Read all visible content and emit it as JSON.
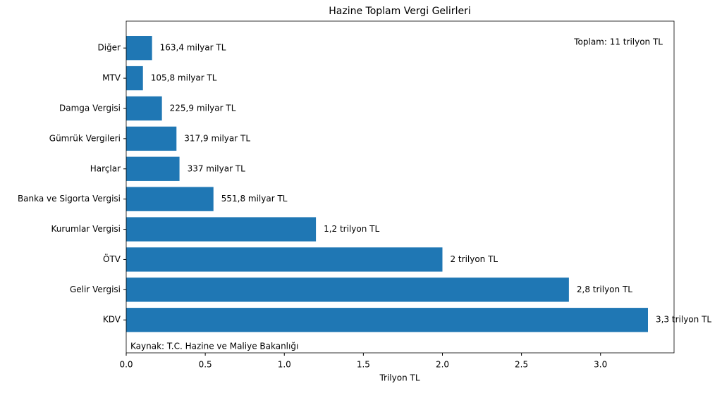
{
  "chart_data": {
    "type": "barh",
    "title": "Hazine Toplam Vergi Gelirleri",
    "xlabel": "Trilyon TL",
    "categories": [
      "Diğer",
      "MTV",
      "Damga Vergisi",
      "Gümrük Vergileri",
      "Harçlar",
      "Banka ve Sigorta Vergisi",
      "Kurumlar Vergisi",
      "ÖTV",
      "Gelir Vergisi",
      "KDV"
    ],
    "values": [
      0.1634,
      0.1058,
      0.2259,
      0.3179,
      0.337,
      0.5518,
      1.2,
      2.0,
      2.8,
      3.3
    ],
    "value_labels": [
      "163,4 milyar TL",
      "105,8 milyar TL",
      "225,9 milyar TL",
      "317,9 milyar TL",
      "337 milyar TL",
      "551,8 milyar TL",
      "1,2 trilyon TL",
      "2 trilyon TL",
      "2,8 trilyon TL",
      "3,3 trilyon TL"
    ],
    "color": "#1f77b4",
    "xlim": [
      0,
      3.465
    ],
    "xticks": [
      {
        "value": 0,
        "label": "0.0"
      },
      0.5,
      {
        "value": 1,
        "label": "1.0"
      },
      1.5,
      {
        "value": 2,
        "label": "2.0"
      },
      2.5,
      {
        "value": 3,
        "label": "3.0"
      }
    ],
    "annotations": [
      "Toplam: 11 trilyon TL",
      "Kaynak: T.C. Hazine ve Maliye Bakanlığı"
    ]
  }
}
